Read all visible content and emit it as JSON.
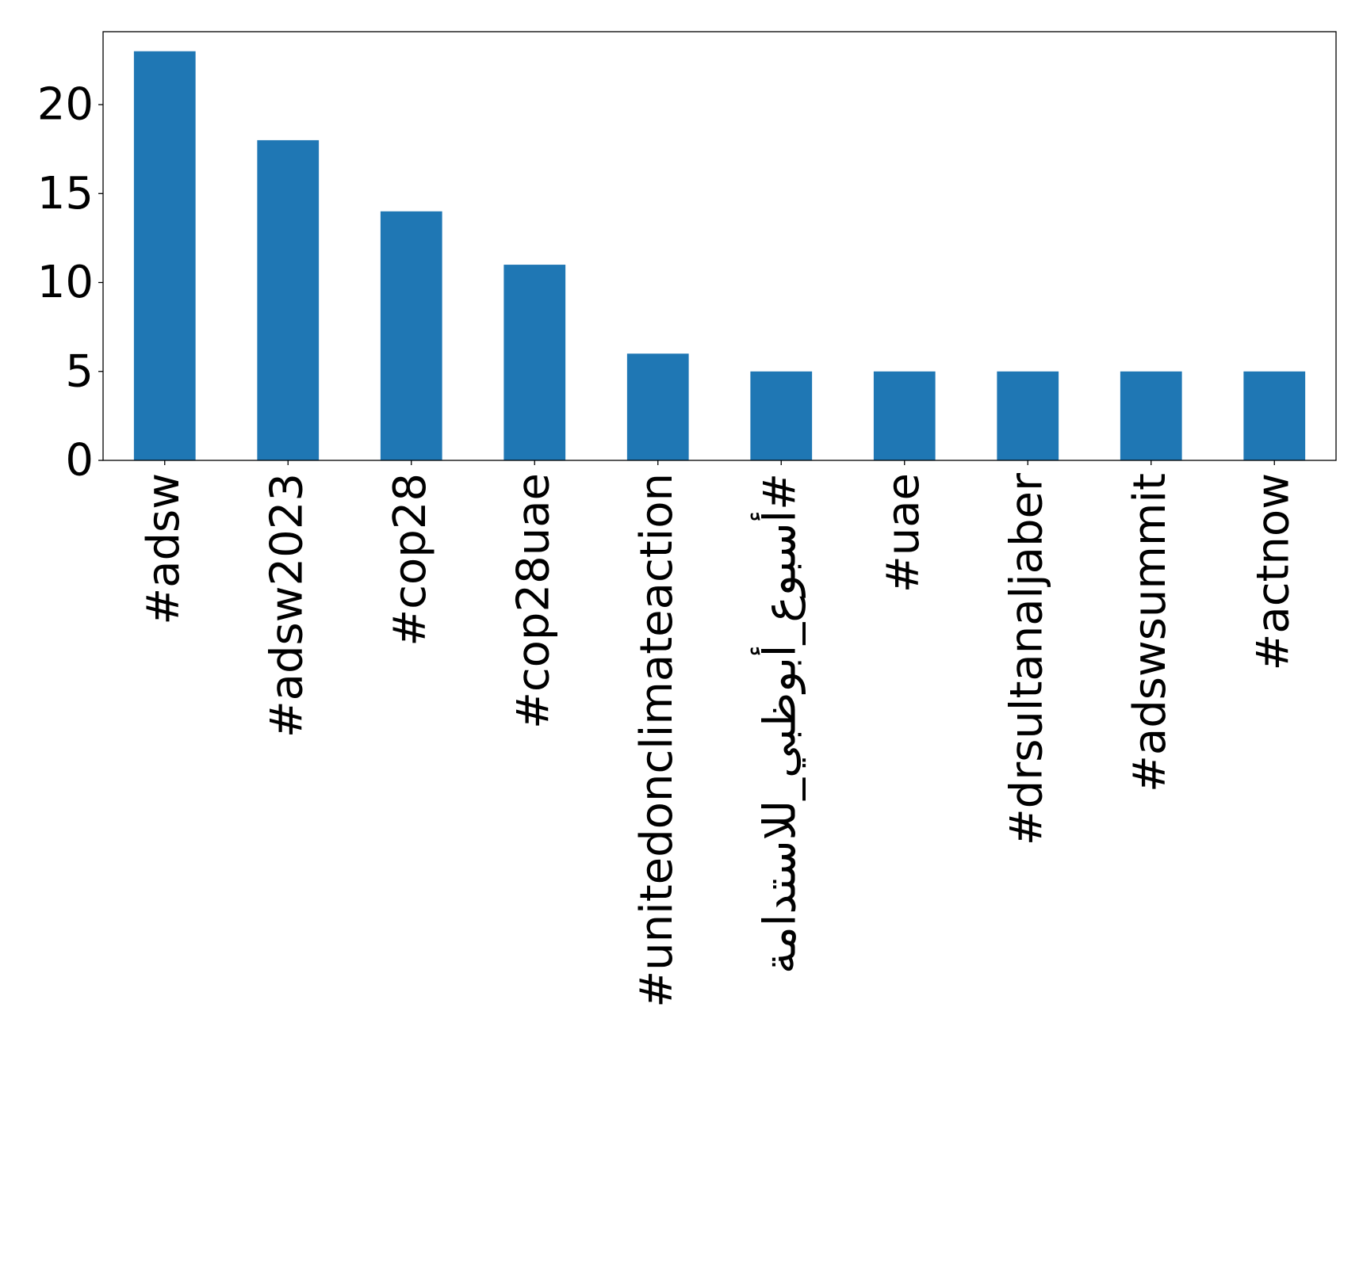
{
  "chart_data": {
    "type": "bar",
    "title": "",
    "xlabel": "",
    "ylabel": "",
    "categories": [
      "#adsw",
      "#adsw2023",
      "#cop28",
      "#cop28uae",
      "#unitedonclimateaction",
      "#أسبوع_أبوظبي_للاستدامة",
      "#uae",
      "#drsultanaljaber",
      "#adswsummit",
      "#actnow"
    ],
    "values": [
      23,
      18,
      14,
      11,
      6,
      5,
      5,
      5,
      5,
      5
    ],
    "ylim": [
      0,
      24.1
    ],
    "yticks": [
      0,
      5,
      10,
      15,
      20
    ],
    "bar_color": "#1f77b4",
    "grid": false,
    "legend": "none"
  }
}
